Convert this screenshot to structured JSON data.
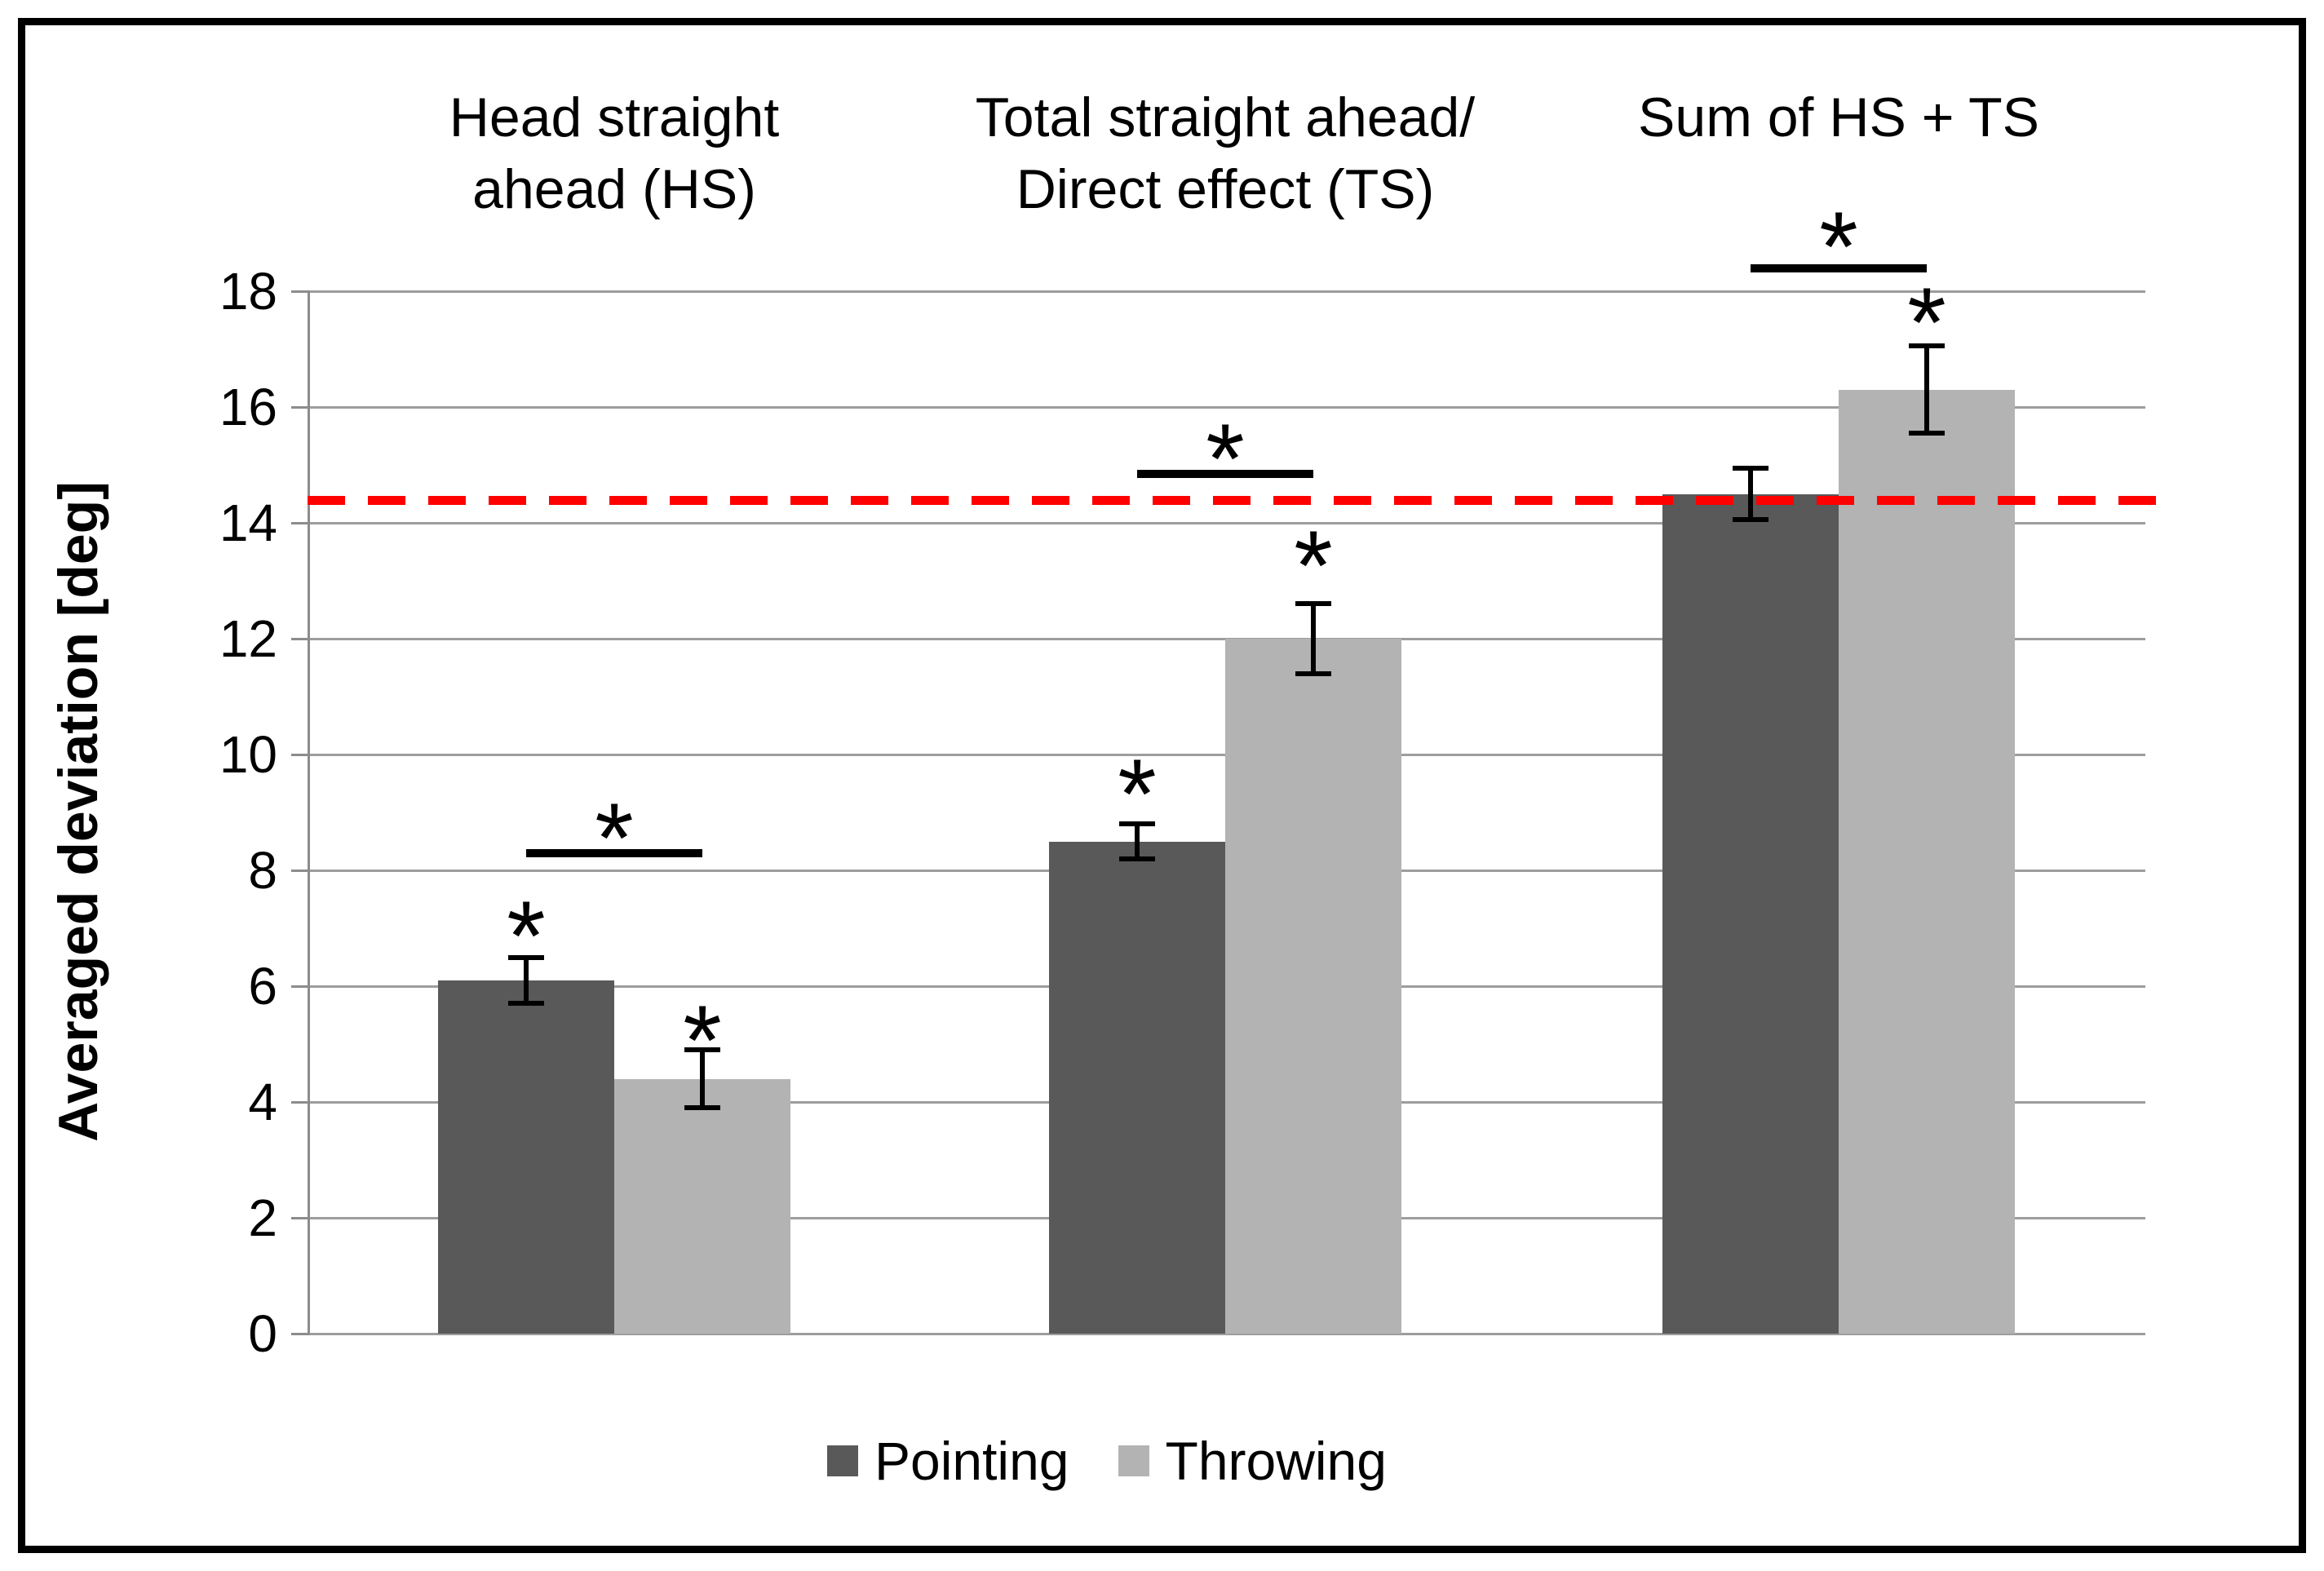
{
  "chart_data": {
    "type": "bar",
    "title": "",
    "ylabel": "Averaged deviation [deg]",
    "xlabel": "",
    "ylim": [
      0,
      18
    ],
    "yticks": [
      0,
      2,
      4,
      6,
      8,
      10,
      12,
      14,
      16,
      18
    ],
    "ytick_labels": [
      "0",
      "2",
      "4",
      "6",
      "8",
      "10",
      "12",
      "14",
      "16",
      "18"
    ],
    "grid": true,
    "categories": [
      "Head straight ahead (HS)",
      "Total straight ahead/ Direct effect (TS)",
      "Sum of HS + TS"
    ],
    "category_label_lines": [
      [
        "Head straight",
        "ahead (HS)"
      ],
      [
        "Total straight ahead/",
        "Direct effect (TS)"
      ],
      [
        "Sum of HS + TS"
      ]
    ],
    "series": [
      {
        "name": "Pointing",
        "color": "#595959",
        "values": [
          6.1,
          8.5,
          14.5
        ],
        "errors": [
          0.4,
          0.3,
          0.45
        ],
        "star_y": [
          7.15,
          9.6,
          null
        ]
      },
      {
        "name": "Throwing",
        "color": "#b3b3b3",
        "values": [
          4.4,
          12.0,
          16.3
        ],
        "errors": [
          0.5,
          0.6,
          0.75
        ],
        "star_y": [
          5.35,
          13.55,
          17.75
        ]
      }
    ],
    "significance_brackets": [
      {
        "category_index": 0,
        "between": "Pointing vs Throwing",
        "line_y": 8.3,
        "star_y": 8.85,
        "label": "*"
      },
      {
        "category_index": 1,
        "between": "Pointing vs Throwing",
        "line_y": 14.85,
        "star_y": 15.4,
        "label": "*"
      },
      {
        "category_index": 2,
        "between": "Pointing vs Throwing",
        "line_y": 18.4,
        "star_y": 19.05,
        "label": "*"
      }
    ],
    "reference_line": {
      "y": 14.4,
      "color": "#ff0000",
      "style": "dashed"
    },
    "legend": {
      "position": "bottom",
      "entries": [
        "Pointing",
        "Throwing"
      ]
    },
    "star_symbol": "*"
  },
  "colors": {
    "pointing": "#595959",
    "throwing": "#b3b3b3",
    "gridline": "#9d9d9d",
    "axis": "#8c8c8c",
    "reference": "#ff0000",
    "frame": "#000000",
    "background": "#ffffff"
  }
}
